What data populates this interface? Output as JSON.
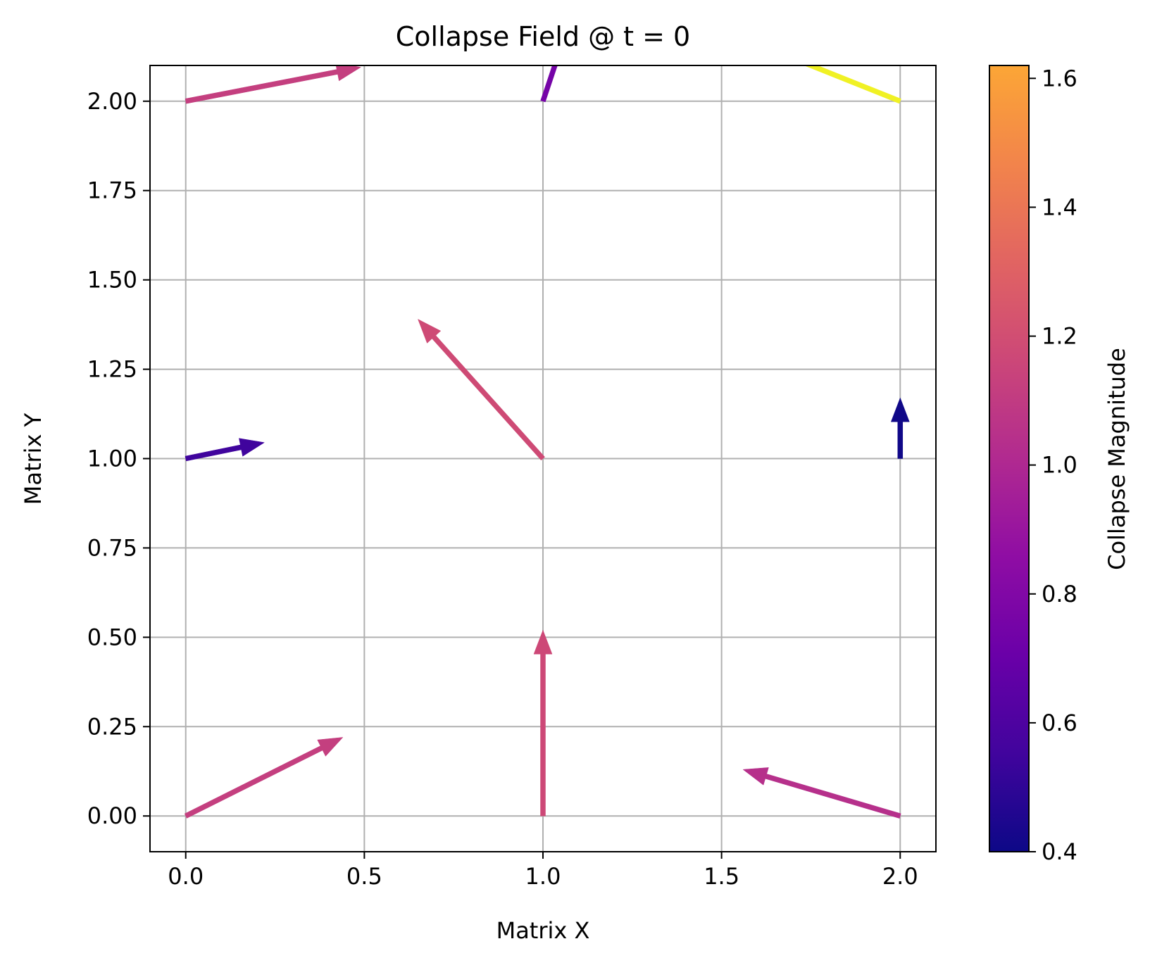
{
  "chart_data": {
    "type": "quiver",
    "title": "Collapse Field @ t = 0",
    "xlabel": "Matrix X",
    "ylabel": "Matrix Y",
    "xlim": [
      -0.1,
      2.1
    ],
    "ylim": [
      -0.1,
      2.1
    ],
    "x_ticks": [
      0.0,
      0.5,
      1.0,
      1.5,
      2.0
    ],
    "x_tick_labels": [
      "0.0",
      "0.5",
      "1.0",
      "1.5",
      "2.0"
    ],
    "y_ticks": [
      0.0,
      0.25,
      0.5,
      0.75,
      1.0,
      1.25,
      1.5,
      1.75,
      2.0
    ],
    "y_tick_labels": [
      "0.00",
      "0.25",
      "0.50",
      "0.75",
      "1.00",
      "1.25",
      "1.50",
      "1.75",
      "2.00"
    ],
    "grid": true,
    "colorbar": {
      "label": "Collapse Magnitude",
      "colormap": "plasma",
      "range": [
        0.4,
        1.62
      ],
      "ticks": [
        0.4,
        0.6,
        0.8,
        1.0,
        1.2,
        1.4,
        1.6
      ],
      "tick_labels": [
        "0.4",
        "0.6",
        "0.8",
        "1.0",
        "1.2",
        "1.4",
        "1.6"
      ]
    },
    "vectors": [
      {
        "x": 0,
        "y": 0,
        "u": 0.44,
        "v": 0.22,
        "magnitude": 1.12
      },
      {
        "x": 1,
        "y": 0,
        "u": 0.0,
        "v": 0.52,
        "magnitude": 1.17
      },
      {
        "x": 2,
        "y": 0,
        "u": -0.44,
        "v": 0.13,
        "magnitude": 1.04
      },
      {
        "x": 0,
        "y": 1,
        "u": 0.22,
        "v": 0.045,
        "magnitude": 0.55
      },
      {
        "x": 1,
        "y": 1,
        "u": -0.35,
        "v": 0.39,
        "magnitude": 1.18
      },
      {
        "x": 2,
        "y": 1,
        "u": 0.0,
        "v": 0.17,
        "magnitude": 0.41
      },
      {
        "x": 0,
        "y": 2,
        "u": 0.49,
        "v": 0.095,
        "magnitude": 1.12
      },
      {
        "x": 1,
        "y": 2,
        "u": 0.1,
        "v": 0.3,
        "magnitude": 0.75
      },
      {
        "x": 2,
        "y": 2,
        "u": -0.55,
        "v": 0.22,
        "magnitude": 1.61
      }
    ]
  }
}
